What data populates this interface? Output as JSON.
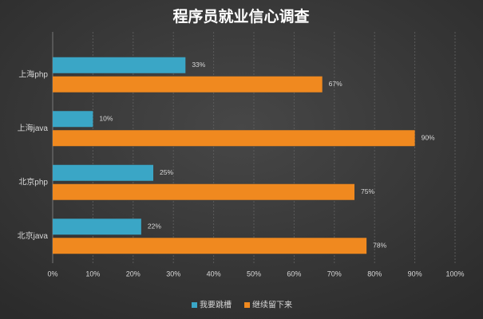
{
  "chart_data": {
    "type": "bar",
    "orientation": "horizontal",
    "title": "程序员就业信心调查",
    "categories": [
      "上海php",
      "上海java",
      "北京php",
      "北京java"
    ],
    "series": [
      {
        "name": "我要跳槽",
        "color": "#3aa6c6",
        "values": [
          33,
          10,
          25,
          22
        ],
        "value_labels": [
          "33%",
          "10%",
          "25%",
          "22%"
        ]
      },
      {
        "name": "继续留下来",
        "color": "#f0891f",
        "values": [
          67,
          90,
          75,
          78
        ],
        "value_labels": [
          "67%",
          "90%",
          "75%",
          "78%"
        ]
      }
    ],
    "xlim": [
      0,
      100
    ],
    "xticks": [
      {
        "value": 0,
        "label": "0%"
      },
      {
        "value": 10,
        "label": "10%"
      },
      {
        "value": 20,
        "label": "20%"
      },
      {
        "value": 30,
        "label": "30%"
      },
      {
        "value": 40,
        "label": "40%"
      },
      {
        "value": 50,
        "label": "50%"
      },
      {
        "value": 60,
        "label": "60%"
      },
      {
        "value": 70,
        "label": "70%"
      },
      {
        "value": 80,
        "label": "80%"
      },
      {
        "value": 90,
        "label": "90%"
      },
      {
        "value": 100,
        "label": "100%"
      }
    ],
    "grid": true,
    "legend": "bottom"
  }
}
